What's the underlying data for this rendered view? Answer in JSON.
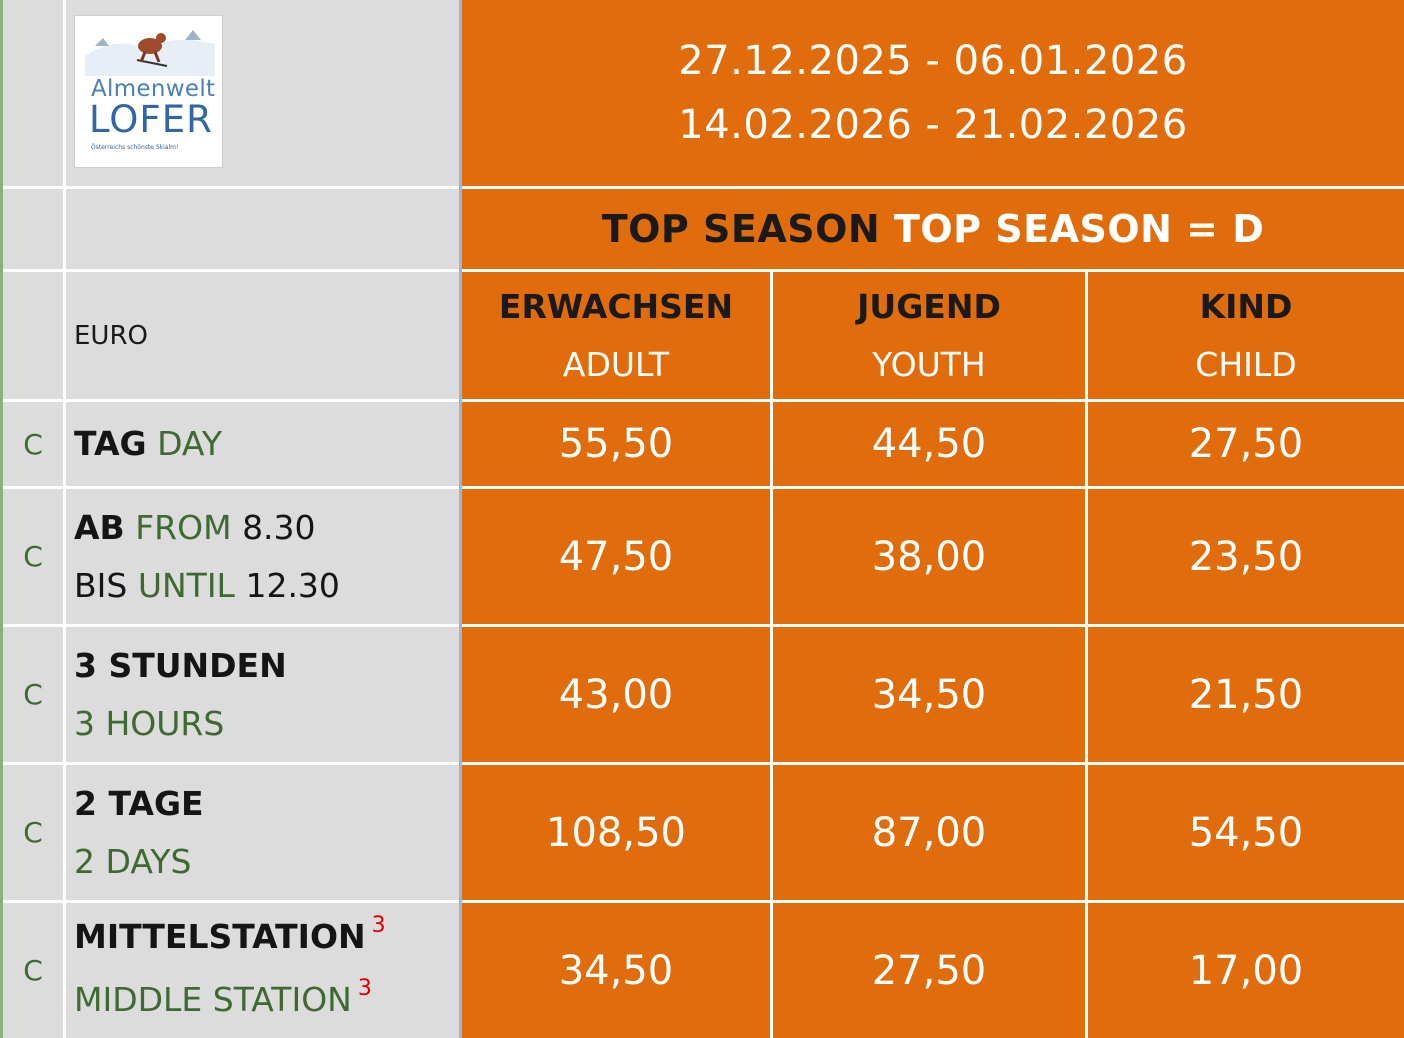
{
  "logo": {
    "line1": "Almenwelt",
    "line2": "LOFER",
    "tagline": "Österreichs schönste Skialm!"
  },
  "header": {
    "date_ranges": [
      "27.12.2025 - 06.01.2026",
      "14.02.2026 - 21.02.2026"
    ],
    "season_de": "TOP SEASON",
    "season_en": "TOP SEASON = D",
    "currency": "EURO"
  },
  "columns": [
    {
      "de": "ERWACHSEN",
      "en": "ADULT"
    },
    {
      "de": "JUGEND",
      "en": "YOUTH"
    },
    {
      "de": "KIND",
      "en": "CHILD"
    }
  ],
  "rows": [
    {
      "category": "C",
      "line1_de": "TAG",
      "line1_en": "DAY",
      "prices": [
        "55,50",
        "44,50",
        "27,50"
      ]
    },
    {
      "category": "C",
      "line1_de": "AB",
      "line1_en": "FROM",
      "line1_time": "8.30",
      "line2_de": "BIS",
      "line2_en": "UNTIL",
      "line2_time": "12.30",
      "prices": [
        "47,50",
        "38,00",
        "23,50"
      ]
    },
    {
      "category": "C",
      "line1_de": "3 STUNDEN",
      "line2_en": "3 HOURS",
      "prices": [
        "43,00",
        "34,50",
        "21,50"
      ]
    },
    {
      "category": "C",
      "line1_de": "2 TAGE",
      "line2_en": "2 DAYS",
      "prices": [
        "108,50",
        "87,00",
        "54,50"
      ]
    },
    {
      "category": "C",
      "line1_de": "MITTELSTATION",
      "line1_sup": "3",
      "line2_en": "MIDDLE STATION",
      "line2_sup": "3",
      "prices": [
        "34,50",
        "27,50",
        "17,00"
      ]
    }
  ],
  "colors": {
    "orange": "#e06c0c",
    "gray": "#dcdcdc",
    "green_text": "#3e6a32",
    "footnote_red": "#e00000"
  }
}
